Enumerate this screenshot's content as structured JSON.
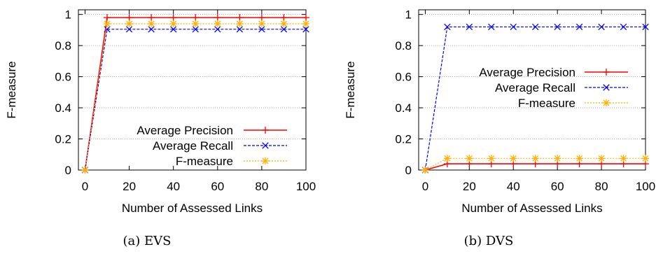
{
  "chart_data": [
    {
      "type": "line",
      "caption": "(a)  EVS",
      "xlabel": "Number of Assessed Links",
      "ylabel": "F-measure",
      "xlim": [
        -3,
        100
      ],
      "ylim": [
        0,
        1.03
      ],
      "xticks": [
        0,
        20,
        40,
        60,
        80,
        100
      ],
      "yticks": [
        0,
        0.2,
        0.4,
        0.6,
        0.8,
        1
      ],
      "ytick_labels": [
        "0",
        "0.2",
        "0.4",
        "0.6",
        "0.8",
        "1"
      ],
      "grid": "horizontal",
      "legend_position": "bottom-right",
      "x": [
        0,
        10,
        20,
        30,
        40,
        50,
        60,
        70,
        80,
        90,
        100
      ],
      "series": [
        {
          "name": "Average Precision",
          "color": "#ff0000",
          "marker": "plus",
          "dash": "solid",
          "values": [
            0,
            0.98,
            0.98,
            0.98,
            0.98,
            0.98,
            0.98,
            0.98,
            0.98,
            0.98,
            0.98
          ]
        },
        {
          "name": "Average Recall",
          "color": "#0000ff",
          "marker": "cross",
          "dash": "dashed",
          "values": [
            0,
            0.905,
            0.905,
            0.905,
            0.905,
            0.905,
            0.905,
            0.905,
            0.905,
            0.905,
            0.905
          ]
        },
        {
          "name": "F-measure",
          "color": "#ffb000",
          "marker": "star",
          "dash": "dotted",
          "values": [
            0,
            0.94,
            0.94,
            0.94,
            0.94,
            0.94,
            0.94,
            0.94,
            0.94,
            0.94,
            0.94
          ]
        }
      ]
    },
    {
      "type": "line",
      "caption": "(b)  DVS",
      "xlabel": "Number of Assessed Links",
      "ylabel": "F-measure",
      "xlim": [
        -3,
        100
      ],
      "ylim": [
        0,
        1.03
      ],
      "xticks": [
        0,
        20,
        40,
        60,
        80,
        100
      ],
      "yticks": [
        0,
        0.2,
        0.4,
        0.6,
        0.8,
        1
      ],
      "ytick_labels": [
        "0",
        "0.2",
        "0.4",
        "0.6",
        "0.8",
        "1"
      ],
      "grid": "horizontal",
      "legend_position": "middle-right",
      "x": [
        0,
        10,
        20,
        30,
        40,
        50,
        60,
        70,
        80,
        90,
        100
      ],
      "series": [
        {
          "name": "Average Precision",
          "color": "#ff0000",
          "marker": "plus",
          "dash": "solid",
          "values": [
            0,
            0.04,
            0.04,
            0.04,
            0.04,
            0.04,
            0.04,
            0.04,
            0.04,
            0.04,
            0.04
          ]
        },
        {
          "name": "Average Recall",
          "color": "#0000ff",
          "marker": "cross",
          "dash": "dashed",
          "values": [
            0,
            0.92,
            0.92,
            0.92,
            0.92,
            0.92,
            0.92,
            0.92,
            0.92,
            0.92,
            0.92
          ]
        },
        {
          "name": "F-measure",
          "color": "#ffb000",
          "marker": "star",
          "dash": "dotted",
          "values": [
            0,
            0.075,
            0.075,
            0.075,
            0.075,
            0.075,
            0.075,
            0.075,
            0.075,
            0.075,
            0.075
          ]
        }
      ]
    }
  ]
}
